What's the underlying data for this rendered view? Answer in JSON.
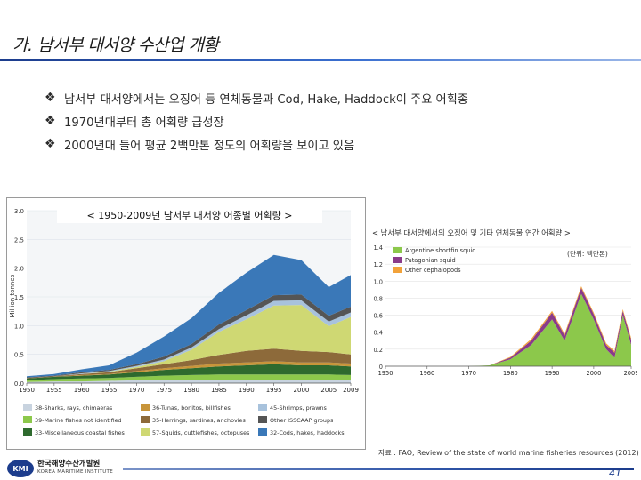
{
  "slide": {
    "title": "가. 남서부 대서양 수산업 개황",
    "bullets": [
      {
        "icon": "diamond-bullet-icon",
        "text": "남서부 대서양에서는 오징어 등 연체동물과  Cod, Hake, Haddock이 주요 어획종"
      },
      {
        "icon": "diamond-bullet-icon",
        "text": "1970년대부터 총 어획량 급성장"
      },
      {
        "icon": "diamond-bullet-icon",
        "text": "2000년대 들어 평균 2백만톤 정도의 어획량을 보이고 있음"
      }
    ],
    "source": "자료 : FAO, Review of the state of world marine fisheries resources (2012)",
    "page_number": "41",
    "logo": {
      "short": "KMI",
      "name_ko": "한국해양수산개발원",
      "name_en": "KOREA MARITIME INSTITUTE"
    },
    "colors": {
      "title_rule": "#1c3c8c",
      "accent": "#3a6fd0"
    }
  },
  "chart_data": [
    {
      "type": "area",
      "title": "< 1950-2009년 남서부 대서양 어종별 어획량 >",
      "ylabel": "Million tonnes",
      "ylim": [
        0,
        3.0
      ],
      "y_ticks": [
        "0.0",
        "0.5",
        "1.0",
        "1.5",
        "2.0",
        "2.5",
        "3.0"
      ],
      "x_ticks": [
        "1950",
        "1955",
        "1960",
        "1965",
        "1970",
        "1975",
        "1980",
        "1985",
        "1990",
        "1995",
        "2000",
        "2005",
        "2009"
      ],
      "x": [
        1950,
        1955,
        1960,
        1965,
        1970,
        1975,
        1980,
        1985,
        1990,
        1995,
        2000,
        2005,
        2009
      ],
      "series": [
        {
          "name": "38-Sharks, rays, chimaeras",
          "color": "#c8d3df",
          "values": [
            0.02,
            0.03,
            0.03,
            0.04,
            0.05,
            0.05,
            0.05,
            0.05,
            0.05,
            0.05,
            0.05,
            0.05,
            0.05
          ]
        },
        {
          "name": "39-Marine fishes not identified",
          "color": "#8cc84b",
          "values": [
            0.03,
            0.04,
            0.05,
            0.05,
            0.06,
            0.08,
            0.09,
            0.1,
            0.1,
            0.1,
            0.1,
            0.1,
            0.09
          ]
        },
        {
          "name": "33-Miscellaneous coastal fishes",
          "color": "#2e6a2e",
          "values": [
            0.03,
            0.04,
            0.05,
            0.06,
            0.08,
            0.1,
            0.12,
            0.14,
            0.16,
            0.18,
            0.16,
            0.16,
            0.15
          ]
        },
        {
          "name": "36-Tunas, bonitos, billfishes",
          "color": "#c8953a",
          "values": [
            0.0,
            0.0,
            0.01,
            0.01,
            0.02,
            0.03,
            0.04,
            0.05,
            0.05,
            0.05,
            0.05,
            0.05,
            0.05
          ]
        },
        {
          "name": "35-Herrings, sardines, anchovies",
          "color": "#8d6a3a",
          "values": [
            0.01,
            0.01,
            0.02,
            0.03,
            0.05,
            0.07,
            0.1,
            0.15,
            0.2,
            0.22,
            0.2,
            0.18,
            0.16
          ]
        },
        {
          "name": "57-Squids, cuttlefishes, octopuses",
          "color": "#cfd873",
          "values": [
            0.0,
            0.0,
            0.0,
            0.01,
            0.02,
            0.05,
            0.18,
            0.4,
            0.55,
            0.75,
            0.8,
            0.45,
            0.65
          ]
        },
        {
          "name": "45-Shrimps, prawns",
          "color": "#a8c2dc",
          "values": [
            0.0,
            0.0,
            0.01,
            0.01,
            0.02,
            0.03,
            0.04,
            0.05,
            0.07,
            0.08,
            0.08,
            0.08,
            0.08
          ]
        },
        {
          "name": "Other ISSCAAP groups",
          "color": "#555555",
          "values": [
            0.01,
            0.01,
            0.02,
            0.02,
            0.03,
            0.05,
            0.06,
            0.08,
            0.09,
            0.1,
            0.1,
            0.1,
            0.1
          ]
        },
        {
          "name": "32-Cods, hakes, haddocks",
          "color": "#3a78b8",
          "values": [
            0.02,
            0.03,
            0.05,
            0.08,
            0.2,
            0.35,
            0.45,
            0.55,
            0.65,
            0.7,
            0.6,
            0.5,
            0.55
          ]
        }
      ]
    },
    {
      "type": "area",
      "title": "< 남서부 대서양에서의 오징어 및 기타 연체동물 연간 어획량 >",
      "unit": "(단위: 백만톤)",
      "ylim": [
        0,
        1.4
      ],
      "y_ticks": [
        "0",
        "0.2",
        "0.4",
        "0.6",
        "0.8",
        "1.0",
        "1.2",
        "1.4"
      ],
      "x_ticks": [
        "1950",
        "1960",
        "1970",
        "1980",
        "1990",
        "2000",
        "2009"
      ],
      "x": [
        1950,
        1955,
        1960,
        1965,
        1970,
        1975,
        1980,
        1985,
        1990,
        1993,
        1997,
        2000,
        2003,
        2005,
        2007,
        2009
      ],
      "series": [
        {
          "name": "Argentine shortfin squid",
          "color": "#8cc84b",
          "values": [
            0.0,
            0.0,
            0.0,
            0.0,
            0.0,
            0.01,
            0.08,
            0.25,
            0.55,
            0.3,
            0.85,
            0.55,
            0.2,
            0.1,
            0.6,
            0.25
          ]
        },
        {
          "name": "Patagonian squid",
          "color": "#8a3a8a",
          "values": [
            0.0,
            0.0,
            0.0,
            0.0,
            0.0,
            0.0,
            0.02,
            0.05,
            0.08,
            0.06,
            0.07,
            0.06,
            0.05,
            0.06,
            0.05,
            0.06
          ]
        },
        {
          "name": "Other cephalopods",
          "color": "#f2a23a",
          "values": [
            0.0,
            0.0,
            0.0,
            0.0,
            0.0,
            0.0,
            0.01,
            0.02,
            0.02,
            0.02,
            0.02,
            0.02,
            0.02,
            0.02,
            0.02,
            0.02
          ]
        }
      ]
    }
  ]
}
